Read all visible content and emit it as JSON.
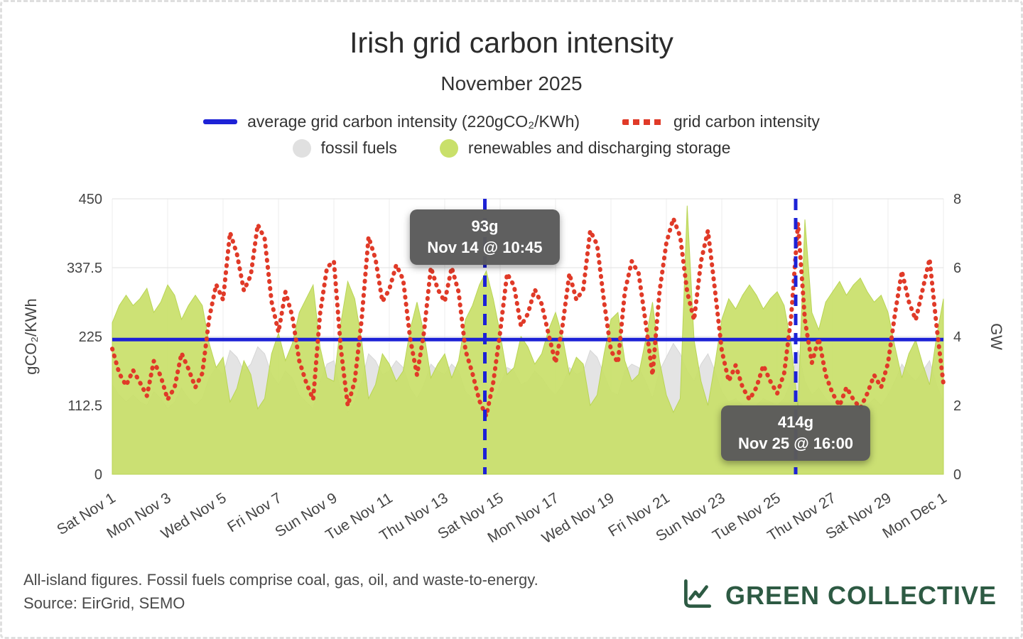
{
  "page": {
    "title": "Irish grid carbon intensity",
    "subtitle": "November 2025"
  },
  "legend": {
    "average_label": "average grid carbon intensity (220gCO₂/KWh)",
    "intensity_label": "grid carbon intensity",
    "fossil_label": "fossil fuels",
    "renewables_label": "renewables and discharging storage"
  },
  "footer": {
    "note": "All-island figures. Fossil fuels comprise coal, gas, oil, and waste-to-energy.",
    "source": "Source: EirGrid, SEMO",
    "brand": "GREEN COLLECTIVE"
  },
  "colors": {
    "blue": "#1d22d6",
    "red": "#e03a28",
    "green": "#c9e06a",
    "gray": "#e4e4e4",
    "brand_green": "#2d5a43",
    "tooltip_bg": "#5a5a5a"
  },
  "chart_data": {
    "type": "area+line",
    "title": "Irish grid carbon intensity",
    "subtitle": "November 2025",
    "x_range_days": 30,
    "step_days": 0.25,
    "x_start": "Sat Nov 1",
    "x_end": "Mon Dec 1",
    "grid": true,
    "left_axis": {
      "label": "gCO₂/KWh",
      "range": [
        0,
        450
      ],
      "ticks": [
        0,
        112.5,
        225,
        337.5,
        450
      ],
      "tick_labels": [
        "0",
        "112.5",
        "225",
        "337.5",
        "450"
      ]
    },
    "right_axis": {
      "label": "GW",
      "range": [
        0,
        8
      ],
      "ticks": [
        0,
        2,
        4,
        6,
        8
      ],
      "tick_labels": [
        "0",
        "2",
        "4",
        "6",
        "8"
      ]
    },
    "x_ticks": [
      {
        "day": 0,
        "label": "Sat Nov 1"
      },
      {
        "day": 2,
        "label": "Mon Nov 3"
      },
      {
        "day": 4,
        "label": "Wed Nov 5"
      },
      {
        "day": 6,
        "label": "Fri Nov 7"
      },
      {
        "day": 8,
        "label": "Sun Nov 9"
      },
      {
        "day": 10,
        "label": "Tue Nov 11"
      },
      {
        "day": 12,
        "label": "Thu Nov 13"
      },
      {
        "day": 14,
        "label": "Sat Nov 15"
      },
      {
        "day": 16,
        "label": "Mon Nov 17"
      },
      {
        "day": 18,
        "label": "Wed Nov 19"
      },
      {
        "day": 20,
        "label": "Fri Nov 21"
      },
      {
        "day": 22,
        "label": "Sun Nov 23"
      },
      {
        "day": 24,
        "label": "Tue Nov 25"
      },
      {
        "day": 26,
        "label": "Thu Nov 27"
      },
      {
        "day": 28,
        "label": "Sat Nov 29"
      },
      {
        "day": 30,
        "label": "Mon Dec 1"
      }
    ],
    "average_line": {
      "value": 220,
      "unit": "gCO₂/KWh",
      "label": "average grid carbon intensity (220gCO₂/KWh)"
    },
    "annotations": [
      {
        "value_label": "93g",
        "time_label": "Nov 14 @ 10:45",
        "day_offset": 13.448,
        "value": 93
      },
      {
        "value_label": "414g",
        "time_label": "Nov 25 @ 16:00",
        "day_offset": 24.667,
        "value": 414
      }
    ],
    "series": {
      "carbon": {
        "name": "grid carbon intensity",
        "axis": "left",
        "style": "dotted-line",
        "unit": "gCO₂/KWh",
        "values": [
          205,
          165,
          145,
          170,
          150,
          128,
          185,
          160,
          122,
          142,
          198,
          172,
          142,
          165,
          255,
          310,
          285,
          395,
          360,
          300,
          325,
          408,
          385,
          282,
          232,
          298,
          258,
          185,
          150,
          122,
          262,
          338,
          348,
          205,
          112,
          152,
          252,
          388,
          352,
          282,
          302,
          342,
          318,
          222,
          162,
          232,
          338,
          302,
          282,
          338,
          298,
          202,
          165,
          120,
          95,
          150,
          232,
          328,
          308,
          242,
          262,
          302,
          278,
          228,
          182,
          242,
          328,
          285,
          302,
          398,
          375,
          282,
          202,
          182,
          298,
          348,
          328,
          248,
          162,
          298,
          378,
          418,
          388,
          298,
          252,
          348,
          398,
          302,
          202,
          152,
          178,
          142,
          122,
          142,
          178,
          152,
          132,
          165,
          255,
          410,
          252,
          182,
          222,
          162,
          132,
          112,
          142,
          122,
          108,
          132,
          162,
          142,
          182,
          262,
          332,
          282,
          252,
          302,
          352,
          242,
          148
        ]
      },
      "fossil": {
        "name": "fossil fuels",
        "axis": "right",
        "style": "area",
        "unit": "GW",
        "values": [
          2.6,
          2.3,
          2.1,
          2.3,
          2.1,
          2.0,
          2.4,
          2.2,
          1.9,
          2.1,
          2.5,
          2.2,
          2.0,
          2.2,
          2.8,
          3.1,
          2.9,
          3.6,
          3.4,
          3.0,
          3.2,
          3.7,
          3.5,
          2.9,
          2.6,
          3.0,
          2.8,
          2.3,
          2.1,
          1.9,
          2.7,
          3.2,
          3.3,
          2.4,
          1.8,
          2.1,
          2.7,
          3.5,
          3.3,
          2.9,
          3.0,
          3.3,
          3.1,
          2.5,
          2.2,
          2.6,
          3.2,
          3.0,
          2.9,
          3.2,
          3.0,
          2.4,
          2.2,
          1.9,
          1.7,
          2.1,
          2.6,
          3.1,
          3.0,
          2.6,
          2.7,
          3.0,
          2.8,
          2.5,
          2.3,
          2.6,
          3.1,
          2.9,
          3.0,
          3.6,
          3.4,
          2.9,
          2.4,
          2.3,
          3.0,
          3.2,
          3.1,
          2.7,
          2.2,
          3.0,
          3.4,
          3.8,
          3.5,
          3.0,
          2.7,
          3.2,
          3.5,
          3.0,
          2.4,
          2.1,
          2.2,
          2.0,
          1.9,
          2.0,
          2.2,
          2.1,
          2.0,
          2.2,
          2.7,
          3.6,
          2.7,
          2.3,
          2.5,
          2.2,
          2.0,
          1.9,
          2.0,
          1.9,
          1.8,
          2.0,
          2.2,
          2.0,
          2.3,
          2.7,
          3.2,
          2.9,
          2.7,
          3.0,
          3.3,
          2.6,
          2.1
        ]
      },
      "renewables": {
        "name": "renewables and discharging storage",
        "axis": "right",
        "style": "area",
        "unit": "GW",
        "values": [
          4.4,
          4.9,
          5.2,
          4.9,
          5.1,
          5.4,
          4.7,
          5.0,
          5.5,
          5.2,
          4.5,
          4.9,
          5.2,
          4.9,
          3.8,
          3.1,
          3.4,
          2.1,
          2.5,
          3.3,
          2.9,
          1.9,
          2.2,
          3.5,
          4.1,
          3.3,
          3.8,
          4.7,
          5.1,
          5.5,
          3.7,
          2.8,
          2.7,
          4.4,
          5.6,
          5.1,
          3.9,
          2.2,
          2.6,
          3.5,
          3.2,
          2.7,
          3.0,
          4.2,
          5.0,
          4.1,
          2.8,
          3.2,
          3.5,
          2.8,
          3.3,
          4.5,
          4.9,
          5.5,
          5.9,
          5.1,
          4.1,
          2.9,
          3.1,
          4.0,
          3.7,
          3.2,
          3.5,
          4.2,
          4.7,
          4.0,
          2.9,
          3.4,
          3.2,
          2.0,
          2.3,
          3.5,
          4.5,
          4.7,
          3.3,
          2.7,
          2.9,
          3.9,
          5.0,
          3.3,
          2.3,
          1.8,
          2.2,
          7.8,
          3.9,
          2.7,
          2.0,
          3.2,
          4.5,
          5.1,
          4.8,
          5.2,
          5.5,
          5.2,
          4.8,
          5.1,
          5.3,
          4.9,
          3.8,
          1.9,
          7.4,
          4.7,
          4.2,
          5.0,
          5.3,
          5.6,
          5.2,
          5.5,
          5.7,
          5.3,
          5.0,
          5.2,
          4.7,
          3.7,
          2.8,
          3.5,
          3.9,
          3.2,
          2.6,
          4.0,
          5.1
        ]
      }
    }
  }
}
